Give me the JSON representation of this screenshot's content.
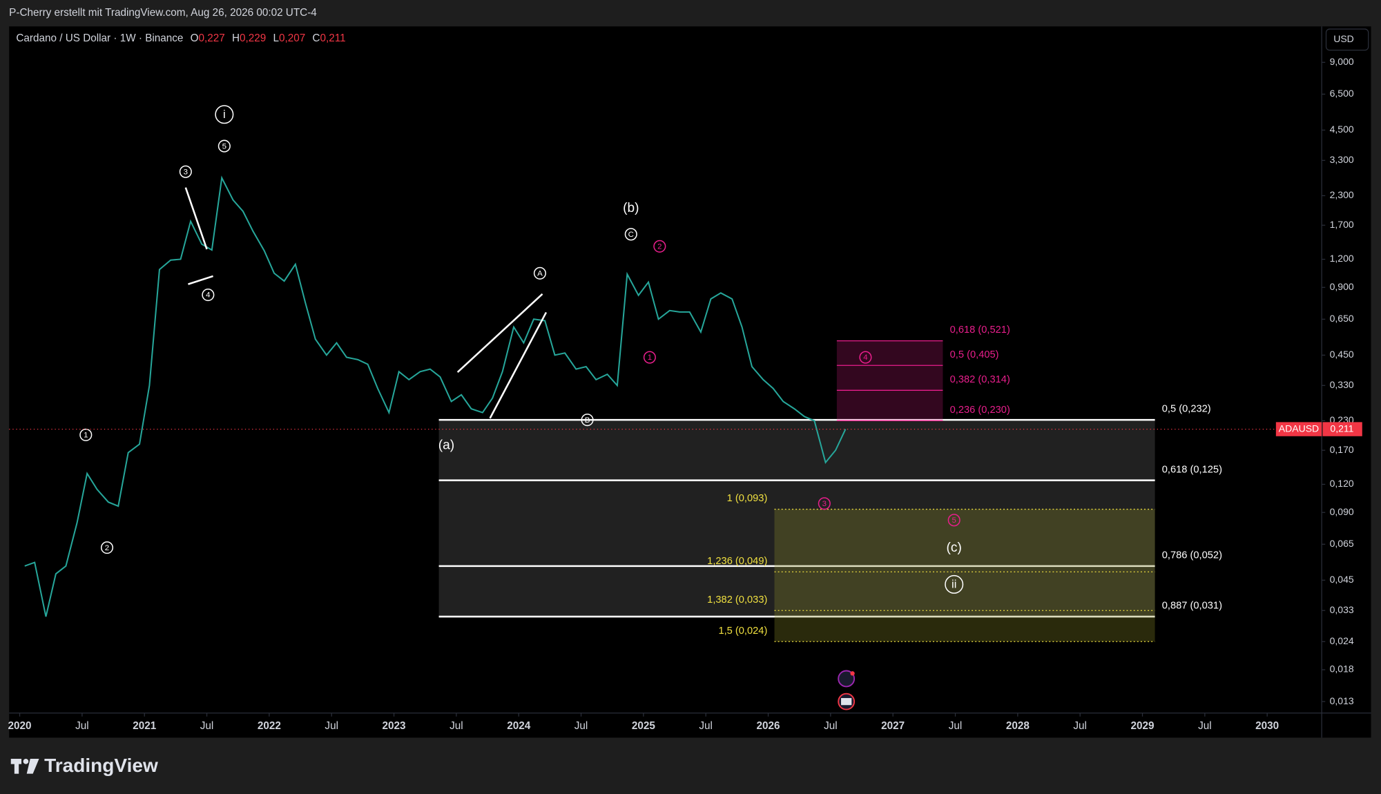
{
  "header": {
    "author": "P-Cherry erstellt mit TradingView.com, Aug 26, 2026 00:02 UTC-4"
  },
  "symbol": {
    "name": "Cardano / US Dollar · 1W · Binance",
    "ohlc": [
      {
        "key": "O",
        "value": "0,227"
      },
      {
        "key": "H",
        "value": "0,229"
      },
      {
        "key": "L",
        "value": "0,207"
      },
      {
        "key": "C",
        "value": "0,211"
      }
    ]
  },
  "currency": "USD",
  "brand": "TradingView",
  "price_tag": {
    "symbol": "ADAUSD",
    "value": 0.211,
    "label": "0,211",
    "color": "#f23645"
  },
  "chart_data": {
    "type": "line",
    "log_scale": true,
    "xlim": [
      2019.915,
      2030.43
    ],
    "ylim": [
      0.01156,
      13.0
    ],
    "xticks": [
      2020,
      {
        "value": 2020.5,
        "label": "Jul"
      },
      2021,
      {
        "value": 2021.5,
        "label": "Jul"
      },
      2022,
      {
        "value": 2022.5,
        "label": "Jul"
      },
      2023,
      {
        "value": 2023.5,
        "label": "Jul"
      },
      2024,
      {
        "value": 2024.5,
        "label": "Jul"
      },
      2025,
      {
        "value": 2025.5,
        "label": "Jul"
      },
      2026,
      {
        "value": 2026.5,
        "label": "Jul"
      },
      2027,
      {
        "value": 2027.5,
        "label": "Jul"
      },
      2028,
      {
        "value": 2028.5,
        "label": "Jul"
      },
      2029,
      {
        "value": 2029.5,
        "label": "Jul"
      },
      2030
    ],
    "yticks": [
      {
        "value": 9.0,
        "label": "9,000"
      },
      {
        "value": 6.5,
        "label": "6,500"
      },
      {
        "value": 4.5,
        "label": "4,500"
      },
      {
        "value": 3.3,
        "label": "3,300"
      },
      {
        "value": 2.3,
        "label": "2,300"
      },
      {
        "value": 1.7,
        "label": "1,700"
      },
      {
        "value": 1.2,
        "label": "1,200"
      },
      {
        "value": 0.9,
        "label": "0,900"
      },
      {
        "value": 0.65,
        "label": "0,650"
      },
      {
        "value": 0.45,
        "label": "0,450"
      },
      {
        "value": 0.33,
        "label": "0,330"
      },
      {
        "value": 0.23,
        "label": "0,230"
      },
      {
        "value": 0.17,
        "label": "0,170"
      },
      {
        "value": 0.12,
        "label": "0,120"
      },
      {
        "value": 0.09,
        "label": "0,090"
      },
      {
        "value": 0.065,
        "label": "0,065"
      },
      {
        "value": 0.045,
        "label": "0,045"
      },
      {
        "value": 0.033,
        "label": "0,033"
      },
      {
        "value": 0.024,
        "label": "0,024"
      },
      {
        "value": 0.018,
        "label": "0,018"
      },
      {
        "value": 0.013,
        "label": "0,013"
      }
    ],
    "x": [
      2020.04,
      2020.12,
      2020.21,
      2020.29,
      2020.37,
      2020.46,
      2020.54,
      2020.62,
      2020.71,
      2020.79,
      2020.87,
      2020.96,
      2021.04,
      2021.12,
      2021.21,
      2021.29,
      2021.37,
      2021.46,
      2021.54,
      2021.62,
      2021.71,
      2021.79,
      2021.87,
      2021.96,
      2022.04,
      2022.12,
      2022.21,
      2022.29,
      2022.37,
      2022.46,
      2022.54,
      2022.62,
      2022.71,
      2022.79,
      2022.87,
      2022.96,
      2023.04,
      2023.12,
      2023.21,
      2023.29,
      2023.37,
      2023.46,
      2023.54,
      2023.62,
      2023.71,
      2023.79,
      2023.87,
      2023.96,
      2024.04,
      2024.12,
      2024.21,
      2024.29,
      2024.37,
      2024.46,
      2024.54,
      2024.62,
      2024.71,
      2024.79,
      2024.87,
      2024.96,
      2025.04,
      2025.12,
      2025.21,
      2025.29,
      2025.37,
      2025.46,
      2025.54,
      2025.62,
      2025.71,
      2025.79,
      2025.87,
      2025.96,
      2026.04,
      2026.12,
      2026.21,
      2026.29,
      2026.37,
      2026.46,
      2026.54,
      2026.62
    ],
    "series": [
      {
        "name": "ADAUSD",
        "color": "#26a69a",
        "values": [
          0.052,
          0.054,
          0.031,
          0.048,
          0.052,
          0.081,
          0.134,
          0.114,
          0.1,
          0.096,
          0.166,
          0.181,
          0.33,
          1.08,
          1.19,
          1.2,
          1.77,
          1.4,
          1.32,
          2.76,
          2.2,
          1.96,
          1.6,
          1.31,
          1.04,
          0.96,
          1.14,
          0.77,
          0.53,
          0.45,
          0.51,
          0.44,
          0.43,
          0.41,
          0.32,
          0.25,
          0.38,
          0.35,
          0.38,
          0.39,
          0.36,
          0.28,
          0.3,
          0.26,
          0.25,
          0.29,
          0.38,
          0.6,
          0.51,
          0.65,
          0.64,
          0.45,
          0.46,
          0.39,
          0.4,
          0.35,
          0.37,
          0.33,
          1.03,
          0.83,
          0.95,
          0.65,
          0.71,
          0.7,
          0.7,
          0.57,
          0.8,
          0.85,
          0.8,
          0.6,
          0.4,
          0.35,
          0.32,
          0.28,
          0.26,
          0.24,
          0.23,
          0.15,
          0.17,
          0.211
        ]
      }
    ],
    "fibs": [
      {
        "color": "#ffffff",
        "fill": "rgba(255,255,255,0.13)",
        "x": [
          2023.36,
          2029.1
        ],
        "label_side": "right",
        "line": "solid",
        "levels": [
          {
            "label": "0,5 (0,232)",
            "price": 0.232
          },
          {
            "label": "0,618 (0,125)",
            "price": 0.125
          },
          {
            "label": "0,786 (0,052)",
            "price": 0.052
          },
          {
            "label": "0,887 (0,031)",
            "price": 0.031
          }
        ]
      },
      {
        "color": "#f0e040",
        "fill": "rgba(140,140,40,0.30)",
        "x": [
          2026.05,
          2029.1
        ],
        "label_side": "left",
        "line": "dotted",
        "levels": [
          {
            "label": "1 (0,093)",
            "price": 0.093
          },
          {
            "label": "1,236 (0,049)",
            "price": 0.049
          },
          {
            "label": "1,382 (0,033)",
            "price": 0.033
          },
          {
            "label": "1,5 (0,024)",
            "price": 0.024
          }
        ]
      },
      {
        "color": "#e91e8c",
        "fill": "rgba(233,30,140,0.22)",
        "x": [
          2026.55,
          2027.4
        ],
        "label_side": "right",
        "line": "thin",
        "levels": [
          {
            "label": "0,618 (0,521)",
            "price": 0.521
          },
          {
            "label": "0,5 (0,405)",
            "price": 0.405
          },
          {
            "label": "0,382 (0,314)",
            "price": 0.314
          },
          {
            "label": "0,236 (0,230)",
            "price": 0.23
          }
        ]
      }
    ],
    "drawings": [
      {
        "points": [
          [
            2021.33,
            2.5
          ],
          [
            2021.5,
            1.33
          ]
        ]
      },
      {
        "points": [
          [
            2021.35,
            0.93
          ],
          [
            2021.55,
            1.01
          ]
        ]
      },
      {
        "points": [
          [
            2023.51,
            0.378
          ],
          [
            2024.19,
            0.841
          ]
        ]
      },
      {
        "points": [
          [
            2023.77,
            0.236
          ],
          [
            2024.22,
            0.697
          ]
        ]
      }
    ],
    "annotations": [
      {
        "text": "i",
        "x": 2021.64,
        "price": 5.28,
        "circled": true,
        "color": "#ffffff"
      },
      {
        "text": "5",
        "x": 2021.64,
        "price": 3.82,
        "circled": true,
        "color": "#ffffff"
      },
      {
        "text": "3",
        "x": 2021.33,
        "price": 2.94,
        "circled": true,
        "color": "#ffffff"
      },
      {
        "text": "4",
        "x": 2021.51,
        "price": 0.834,
        "circled": true,
        "color": "#ffffff"
      },
      {
        "text": "1",
        "x": 2020.53,
        "price": 0.199,
        "circled": true,
        "color": "#ffffff"
      },
      {
        "text": "2",
        "x": 2020.7,
        "price": 0.0628,
        "circled": true,
        "color": "#ffffff"
      },
      {
        "text": "(b)",
        "x": 2024.9,
        "price": 2.03,
        "circled": false,
        "color": "#ffffff"
      },
      {
        "text": "C",
        "x": 2024.9,
        "price": 1.55,
        "circled": true,
        "color": "#ffffff"
      },
      {
        "text": "A",
        "x": 2024.17,
        "price": 1.04,
        "circled": true,
        "color": "#ffffff"
      },
      {
        "text": "B",
        "x": 2024.55,
        "price": 0.232,
        "circled": true,
        "color": "#ffffff"
      },
      {
        "text": "(a)",
        "x": 2023.42,
        "price": 0.179,
        "circled": false,
        "color": "#ffffff"
      },
      {
        "text": "(c)",
        "x": 2027.49,
        "price": 0.0628,
        "circled": false,
        "color": "#ffffff"
      },
      {
        "text": "ii",
        "x": 2027.49,
        "price": 0.0431,
        "circled": true,
        "color": "#ffffff"
      },
      {
        "text": "2",
        "x": 2025.13,
        "price": 1.37,
        "circled": true,
        "color": "#e91e8c"
      },
      {
        "text": "1",
        "x": 2025.05,
        "price": 0.44,
        "circled": true,
        "color": "#e91e8c"
      },
      {
        "text": "4",
        "x": 2026.78,
        "price": 0.44,
        "circled": true,
        "color": "#e91e8c"
      },
      {
        "text": "3",
        "x": 2026.45,
        "price": 0.0986,
        "circled": true,
        "color": "#e91e8c"
      },
      {
        "text": "5",
        "x": 2027.49,
        "price": 0.0832,
        "circled": true,
        "color": "#e91e8c"
      }
    ]
  }
}
